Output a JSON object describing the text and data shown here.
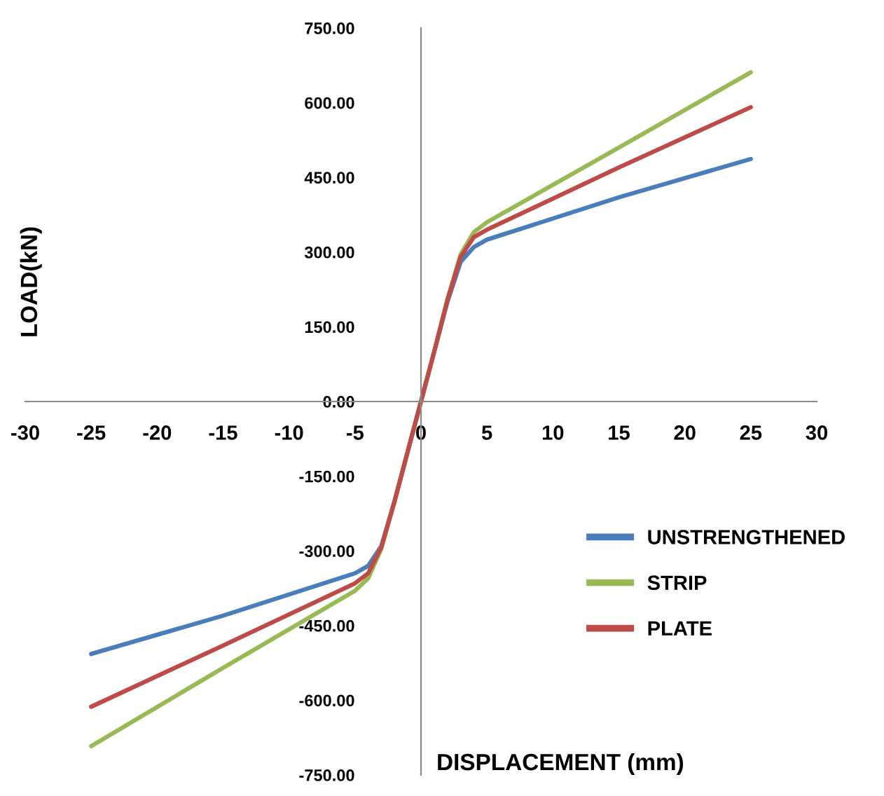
{
  "chart_data": {
    "type": "line",
    "xlabel": "DISPLACEMENT (mm)",
    "ylabel": "LOAD(kN)",
    "x": [
      -25,
      -15,
      -5,
      -4,
      -3,
      -2,
      -1,
      0,
      1,
      2,
      3,
      4,
      5,
      15,
      25
    ],
    "series": [
      {
        "name": "UNSTRENGTHENED",
        "color": "#4a7ebb",
        "values": [
          -507,
          -430,
          -345,
          -330,
          -290,
          -200,
          -100,
          0,
          100,
          200,
          280,
          310,
          325,
          410,
          487
        ]
      },
      {
        "name": "STRIP",
        "color": "#98b954",
        "values": [
          -692,
          -535,
          -380,
          -355,
          -295,
          -200,
          -100,
          0,
          100,
          205,
          295,
          340,
          360,
          510,
          661
        ]
      },
      {
        "name": "PLATE",
        "color": "#be4b48",
        "values": [
          -613,
          -490,
          -365,
          -345,
          -292,
          -200,
          -100,
          0,
          100,
          203,
          290,
          330,
          345,
          470,
          591
        ]
      }
    ],
    "xlim": [
      -30,
      30
    ],
    "xticks": [
      -30,
      -25,
      -20,
      -15,
      -10,
      -5,
      0,
      5,
      10,
      15,
      20,
      25,
      30
    ],
    "ylim": [
      -750,
      750
    ],
    "yticks": [
      {
        "value": -750,
        "label": "-750.00"
      },
      {
        "value": -600,
        "label": "-600.00"
      },
      {
        "value": -450,
        "label": "-450.00"
      },
      {
        "value": -300,
        "label": "-300.00"
      },
      {
        "value": -150,
        "label": "-150.00"
      },
      {
        "value": 0,
        "label": "0.00"
      },
      {
        "value": 150,
        "label": "150.00"
      },
      {
        "value": 300,
        "label": "300.00"
      },
      {
        "value": 450,
        "label": "450.00"
      },
      {
        "value": 600,
        "label": "600.00"
      },
      {
        "value": 750,
        "label": "750.00"
      }
    ],
    "legend": "right",
    "marker": "none",
    "line_style": "solid"
  }
}
